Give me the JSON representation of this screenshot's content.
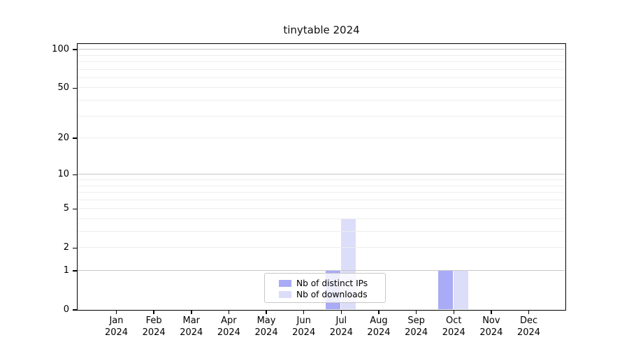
{
  "title": "tinytable 2024",
  "chart_data": {
    "type": "bar",
    "title": "tinytable 2024",
    "x_categories": [
      "Jan",
      "Feb",
      "Mar",
      "Apr",
      "May",
      "Jun",
      "Jul",
      "Aug",
      "Sep",
      "Oct",
      "Nov",
      "Dec"
    ],
    "x_year": "2024",
    "series": [
      {
        "name": "Nb of distinct IPs",
        "color": "#a9abf6",
        "values": [
          0,
          0,
          0,
          0,
          0,
          0,
          1,
          0,
          0,
          1,
          0,
          0
        ]
      },
      {
        "name": "Nb of downloads",
        "color": "#dcddf9",
        "values": [
          0,
          0,
          0,
          0,
          0,
          0,
          4,
          0,
          0,
          1,
          0,
          0
        ]
      }
    ],
    "yscale": "log10(1+x)",
    "ylim": [
      0,
      110
    ],
    "y_tick_values": [
      0,
      1,
      2,
      5,
      10,
      20,
      50,
      100
    ],
    "y_tick_labels": [
      "0",
      "1",
      "2",
      "5",
      "10",
      "20",
      "50",
      "100"
    ],
    "major_grid_values": [
      1,
      10,
      100
    ],
    "minor_grid_values": [
      2,
      3,
      4,
      5,
      6,
      7,
      8,
      9,
      20,
      30,
      40,
      50,
      60,
      70,
      80,
      90
    ],
    "grid": true,
    "legend_position": "inside-bottom-center"
  },
  "colors": {
    "background": "#ffffff",
    "spine": "#000000",
    "major_grid": "#c7c7c7",
    "minor_grid": "#ededed",
    "text": "#000000",
    "legend_border": "#c8c8c8"
  }
}
